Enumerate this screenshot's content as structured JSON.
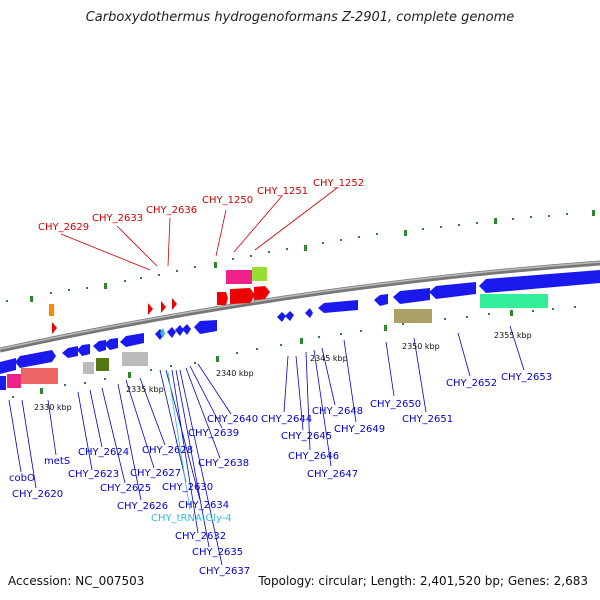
{
  "title": "Carboxydothermus hydrogenoformans Z-2901, complete genome",
  "footer": {
    "accession": "Accession: NC_007503",
    "summary": "Topology: circular; Length: 2,401,520 bp; Genes: 2,683"
  },
  "colors": {
    "forward_label": "#cc0000",
    "reverse_label": "#0000cc",
    "rna_label": "#33bbdd",
    "backbone": "#888888",
    "tick": "#2a8a2a"
  },
  "scale_labels": [
    "2330 kbp",
    "2335 kbp",
    "2340 kbp",
    "2345 kbp",
    "2350 kbp",
    "2355 kbp"
  ],
  "forward_gene_labels": [
    "CHY_2629",
    "CHY_2633",
    "CHY_2636",
    "CHY_1250",
    "CHY_1251",
    "CHY_1252"
  ],
  "reverse_gene_labels": [
    "cobO",
    "CHY_2620",
    "metS",
    "CHY_2624",
    "CHY_2623",
    "CHY_2625",
    "CHY_2626",
    "CHY_2627",
    "CHY_2628",
    "CHY_2630",
    "CHY_2634",
    "CHY_tRNA-Gly-4",
    "CHY_2632",
    "CHY_2635",
    "CHY_2637",
    "CHY_2638",
    "CHY_2639",
    "CHY_2640",
    "CHY_2644",
    "CHY_2645",
    "CHY_2646",
    "CHY_2647",
    "CHY_2648",
    "CHY_2649",
    "CHY_2650",
    "CHY_2651",
    "CHY_2652",
    "CHY_2653"
  ]
}
